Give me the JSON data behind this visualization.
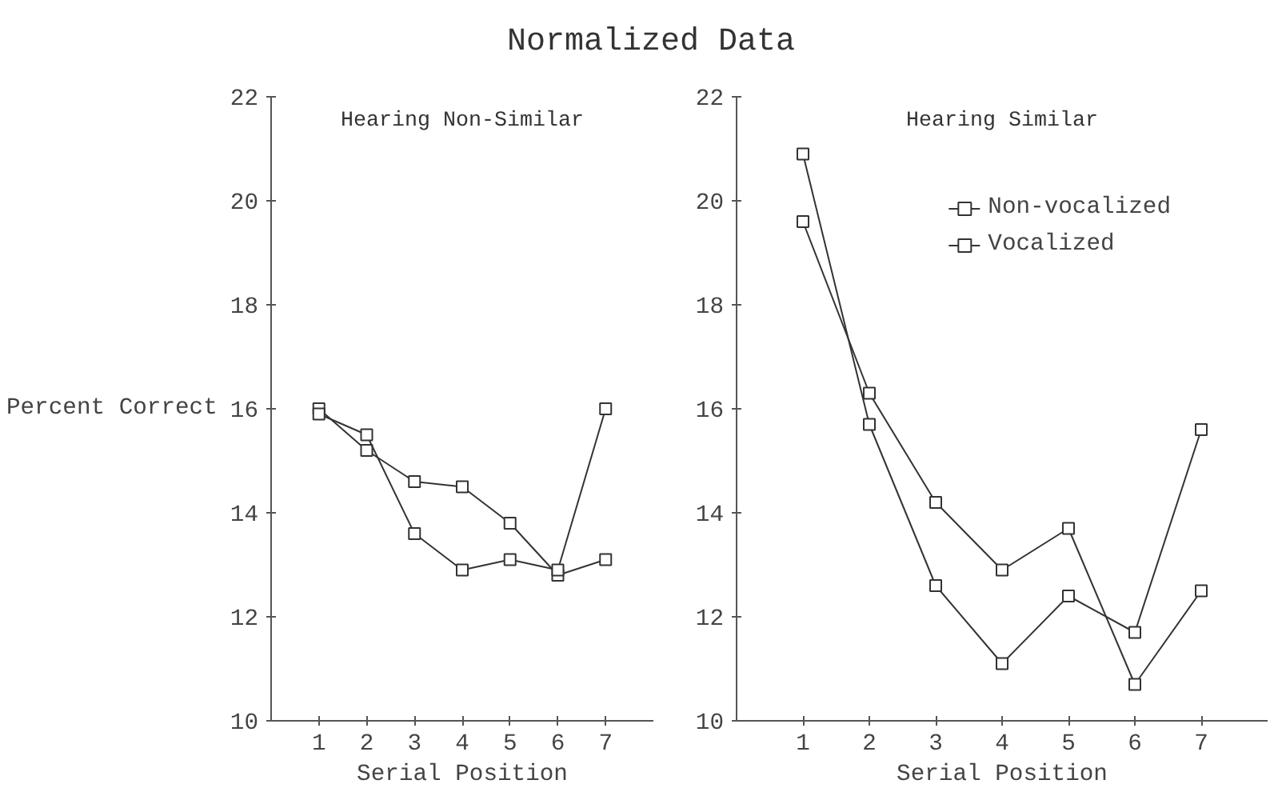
{
  "chart_data": [
    {
      "type": "line",
      "title": "Normalized Data",
      "subtitle": "Hearing Non-Similar",
      "xlabel": "Serial Position",
      "ylabel": "Percent Correct",
      "x": [
        1,
        2,
        3,
        4,
        5,
        6,
        7
      ],
      "xlim": [
        0,
        8
      ],
      "xticks": [
        1,
        2,
        3,
        4,
        5,
        6,
        7
      ],
      "ylim": [
        10,
        22
      ],
      "yticks": [
        10,
        12,
        14,
        16,
        18,
        20,
        22
      ],
      "marker": "square",
      "grid": false,
      "legend": false,
      "series": [
        {
          "color": "#333333",
          "values": [
            16.0,
            15.2,
            14.6,
            14.5,
            13.8,
            12.8,
            13.1
          ]
        },
        {
          "color": "#333333",
          "values": [
            15.9,
            15.5,
            13.6,
            12.9,
            13.1,
            12.9,
            16.0
          ]
        }
      ]
    },
    {
      "type": "line",
      "subtitle": "Hearing Similar",
      "xlabel": "Serial Position",
      "x": [
        1,
        2,
        3,
        4,
        5,
        6,
        7
      ],
      "xlim": [
        0,
        8
      ],
      "xticks": [
        1,
        2,
        3,
        4,
        5,
        6,
        7
      ],
      "ylim": [
        10,
        22
      ],
      "yticks": [
        10,
        12,
        14,
        16,
        18,
        20,
        22
      ],
      "marker": "square",
      "grid": false,
      "legend": "top right",
      "series": [
        {
          "name": "Non-vocalized",
          "color": "#333333",
          "values": [
            19.6,
            16.3,
            14.2,
            12.9,
            13.7,
            10.7,
            12.5
          ]
        },
        {
          "name": "Vocalized",
          "color": "#333333",
          "values": [
            20.9,
            15.7,
            12.6,
            11.1,
            12.4,
            11.7,
            15.6
          ]
        }
      ]
    }
  ]
}
